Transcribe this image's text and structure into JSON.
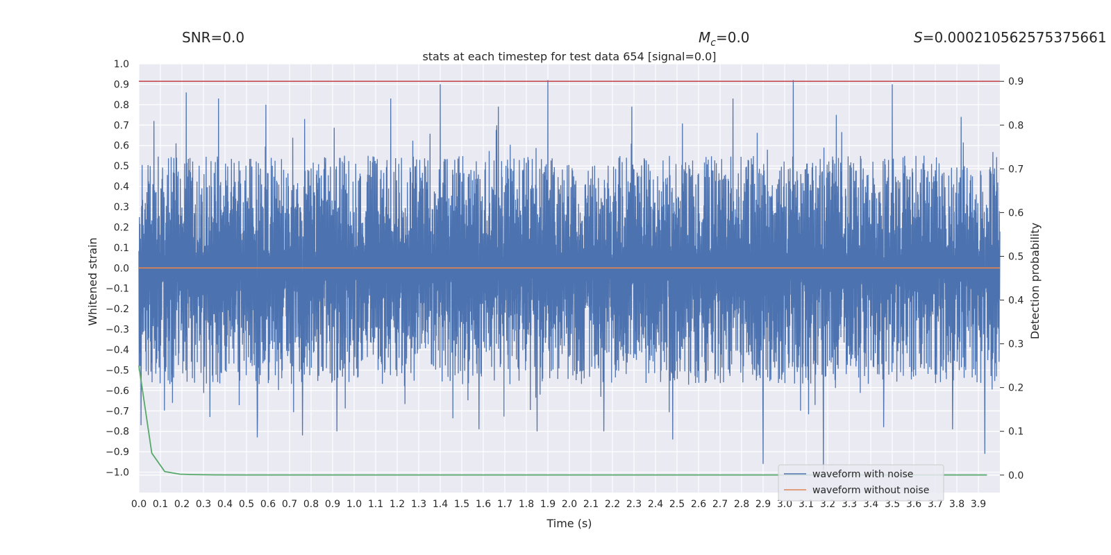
{
  "header": {
    "snr": "SNR=0.0",
    "mc_symbol": "M",
    "mc_sub": "c",
    "mc_value": "=0.0",
    "s_symbol": "S",
    "s_value": "=0.000210562575375661"
  },
  "chart_data": {
    "type": "line",
    "title": "stats at each timestep for test data 654 [signal=0.0]",
    "xlabel": "Time (s)",
    "ylabel": "Whitened strain",
    "y2label": "Detection probability",
    "xlim": [
      0.0,
      4.0
    ],
    "ylim": [
      -1.1,
      1.0
    ],
    "y2lim": [
      -0.04,
      0.94
    ],
    "x_ticks": [
      "0.0",
      "0.1",
      "0.2",
      "0.3",
      "0.4",
      "0.5",
      "0.6",
      "0.7",
      "0.8",
      "0.9",
      "1.0",
      "1.1",
      "1.2",
      "1.3",
      "1.4",
      "1.5",
      "1.6",
      "1.7",
      "1.8",
      "1.9",
      "2.0",
      "2.1",
      "2.2",
      "2.3",
      "2.4",
      "2.5",
      "2.6",
      "2.7",
      "2.8",
      "2.9",
      "3.0",
      "3.1",
      "3.2",
      "3.3",
      "3.4",
      "3.5",
      "3.6",
      "3.7",
      "3.8",
      "3.9"
    ],
    "y_ticks": [
      "1.0",
      "0.9",
      "0.8",
      "0.7",
      "0.6",
      "0.5",
      "0.4",
      "0.3",
      "0.2",
      "0.1",
      "0.0",
      "−0.1",
      "−0.2",
      "−0.3",
      "−0.4",
      "−0.5",
      "−0.6",
      "−0.7",
      "−0.8",
      "−0.9",
      "−1.0"
    ],
    "y2_ticks": [
      "0.9",
      "0.8",
      "0.7",
      "0.6",
      "0.5",
      "0.4",
      "0.3",
      "0.2",
      "0.1",
      "0.0"
    ],
    "colors": {
      "noise": "#4c72b0",
      "clean": "#dd8452",
      "prob": "#55a868",
      "threshold": "#c44e52",
      "background": "#eaeaf2",
      "grid": "#ffffff"
    },
    "series": [
      {
        "name": "waveform with noise",
        "x_range": [
          0.0,
          4.0
        ],
        "envelope_upper": 0.5,
        "envelope_lower": -0.52,
        "peaks": [
          {
            "x": 0.07,
            "y": 0.72
          },
          {
            "x": 0.22,
            "y": 0.86
          },
          {
            "x": 0.37,
            "y": 0.83
          },
          {
            "x": 0.59,
            "y": 0.8
          },
          {
            "x": 0.77,
            "y": 0.73
          },
          {
            "x": 1.17,
            "y": 0.83
          },
          {
            "x": 1.4,
            "y": 0.9
          },
          {
            "x": 1.67,
            "y": 0.79
          },
          {
            "x": 1.9,
            "y": 0.92
          },
          {
            "x": 2.29,
            "y": 0.79
          },
          {
            "x": 2.76,
            "y": 0.83
          },
          {
            "x": 3.04,
            "y": 0.92
          },
          {
            "x": 3.24,
            "y": 0.75
          },
          {
            "x": 3.5,
            "y": 0.9
          },
          {
            "x": 3.82,
            "y": 0.74
          }
        ],
        "troughs": [
          {
            "x": 0.01,
            "y": -0.77
          },
          {
            "x": 0.33,
            "y": -0.73
          },
          {
            "x": 0.55,
            "y": -0.83
          },
          {
            "x": 0.76,
            "y": -0.82
          },
          {
            "x": 0.92,
            "y": -0.8
          },
          {
            "x": 1.58,
            "y": -0.79
          },
          {
            "x": 1.85,
            "y": -0.8
          },
          {
            "x": 2.16,
            "y": -0.8
          },
          {
            "x": 2.48,
            "y": -0.84
          },
          {
            "x": 2.9,
            "y": -0.96
          },
          {
            "x": 3.18,
            "y": -0.99
          },
          {
            "x": 3.46,
            "y": -0.78
          },
          {
            "x": 3.78,
            "y": -0.79
          },
          {
            "x": 3.93,
            "y": -0.91
          }
        ]
      },
      {
        "name": "waveform without noise",
        "x": [
          0.0,
          4.0
        ],
        "y": [
          0.0,
          0.0
        ]
      },
      {
        "name": "detection probability",
        "axis": "right",
        "x": [
          0.0,
          0.06,
          0.12,
          0.19,
          0.25,
          0.35,
          0.5,
          1.0,
          2.0,
          3.0,
          3.94
        ],
        "y": [
          0.25,
          0.05,
          0.008,
          0.002,
          0.001,
          0.0005,
          0.0003,
          0.0002,
          0.0002,
          0.0002,
          0.0002
        ]
      },
      {
        "name": "threshold",
        "axis": "right",
        "x": [
          0.0,
          4.0
        ],
        "y": [
          0.9,
          0.9
        ]
      }
    ],
    "legend": {
      "position": "lower-right",
      "entries": [
        "waveform with noise",
        "waveform without noise"
      ]
    }
  }
}
